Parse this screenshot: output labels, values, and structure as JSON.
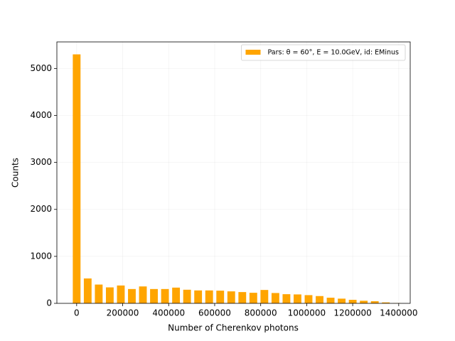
{
  "chart_data": {
    "type": "histogram",
    "x_label": "Number of Cherenkov photons",
    "y_label": "Counts",
    "legend_label": "Pars: θ = 60°, E = 10.0GeV, id: EMinus",
    "legend_position": "upper right",
    "color": "#ffa500",
    "grid": true,
    "bins": [
      -24000,
      24000,
      72000,
      120000,
      168000,
      216000,
      264000,
      312000,
      360000,
      408000,
      456000,
      504000,
      552000,
      600000,
      648000,
      696000,
      744000,
      792000,
      840000,
      888000,
      936000,
      984000,
      1032000,
      1080000,
      1128000,
      1176000,
      1224000,
      1272000,
      1320000,
      1368000,
      1416000
    ],
    "counts": [
      5300,
      530,
      400,
      340,
      380,
      305,
      360,
      305,
      305,
      335,
      290,
      275,
      275,
      270,
      255,
      240,
      225,
      285,
      220,
      195,
      190,
      175,
      155,
      120,
      100,
      75,
      55,
      45,
      20,
      5
    ],
    "xlim": [
      -86000,
      1450000
    ],
    "ylim": [
      0,
      5565
    ],
    "xticks": [
      0,
      200000,
      400000,
      600000,
      800000,
      1000000,
      1200000,
      1400000
    ],
    "yticks": [
      0,
      1000,
      2000,
      3000,
      4000,
      5000
    ]
  }
}
